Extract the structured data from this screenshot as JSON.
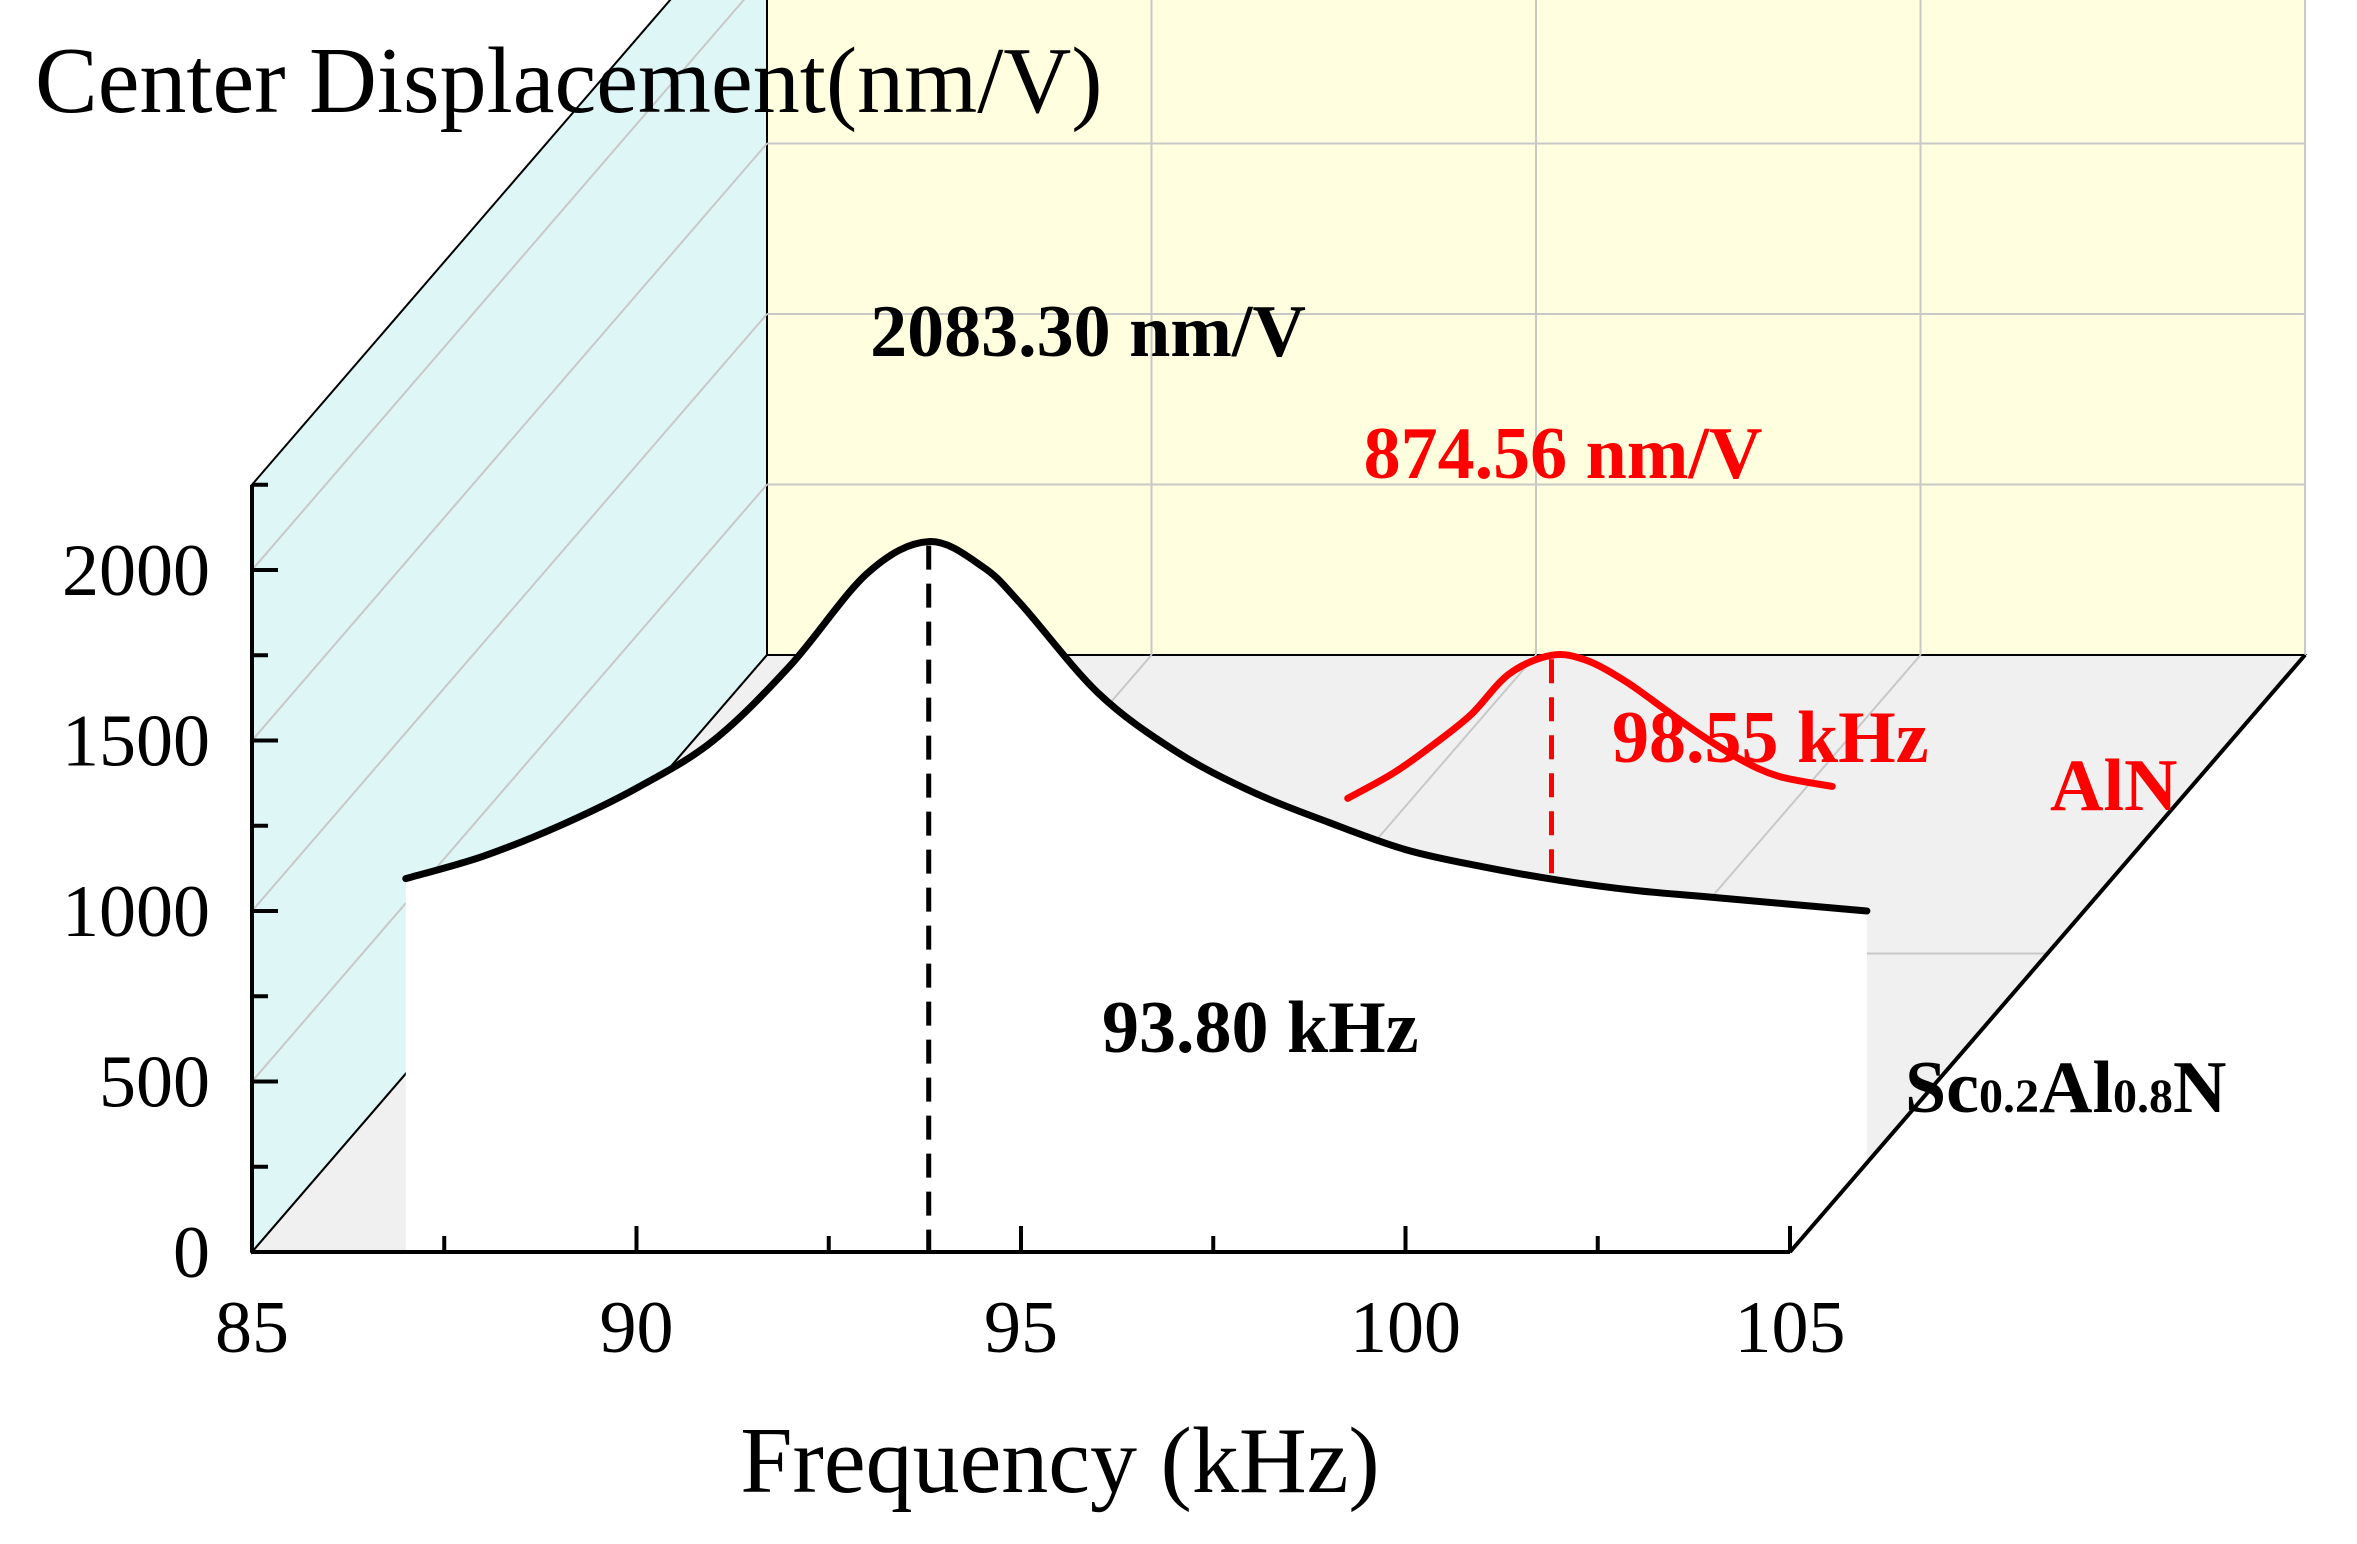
{
  "chart_data": {
    "type": "line",
    "style": "3d-waterfall",
    "title": "Center Displacement(nm/V)",
    "xlabel": "Frequency (kHz)",
    "ylabel": "Center Displacement(nm/V)",
    "xlim": [
      85,
      105
    ],
    "ylim": [
      0,
      2250
    ],
    "x_ticks": [
      "85",
      "90",
      "95",
      "100",
      "105"
    ],
    "x_tick_values": [
      85,
      90,
      95,
      100,
      105
    ],
    "y_ticks": [
      "0",
      "500",
      "1000",
      "1500",
      "2000"
    ],
    "y_tick_values": [
      0,
      500,
      1000,
      1500,
      2000
    ],
    "grid": true,
    "series": [
      {
        "name": "Sc0.2Al0.8N",
        "label_main_1": "Sc",
        "label_sub_1": "0.2",
        "label_main_2": "Al",
        "label_sub_2": "0.8",
        "label_main_3": "N",
        "color": "#000000",
        "depth": 0,
        "peak_frequency": 93.8,
        "peak_displacement": 2083.3,
        "x": [
          87,
          88,
          89,
          90,
          91,
          92,
          93,
          93.8,
          94.5,
          95,
          96,
          97,
          98,
          99,
          100,
          101,
          102,
          103,
          104,
          106
        ],
        "values": [
          1095,
          1160,
          1250,
          1360,
          1500,
          1720,
          1990,
          2083.3,
          2010,
          1900,
          1640,
          1470,
          1350,
          1260,
          1180,
          1130,
          1090,
          1060,
          1040,
          1000
        ],
        "peak_value_label": "2083.30 nm/V",
        "peak_freq_label": "93.80 kHz"
      },
      {
        "name": "AlN",
        "color": "#ff0000",
        "depth": 1,
        "peak_frequency": 98.55,
        "peak_displacement": 874.56,
        "x": [
          95.9,
          96.5,
          97,
          97.5,
          98,
          98.55,
          99,
          99.5,
          100,
          100.5,
          101,
          101.5,
          102.2
        ],
        "values": [
          455,
          530,
          610,
          700,
          820,
          874.56,
          860,
          800,
          720,
          640,
          570,
          520,
          490
        ],
        "peak_value_label": "874.56 nm/V",
        "peak_freq_label": "98.55 kHz"
      }
    ]
  },
  "colors": {
    "left_wall": "#dff6f7",
    "back_wall": "#ffffe0",
    "floor": "#f0f0f0",
    "grid": "#c8c8c8",
    "axis": "#000000",
    "series_primary": "#000000",
    "series_secondary": "#ff0000"
  }
}
